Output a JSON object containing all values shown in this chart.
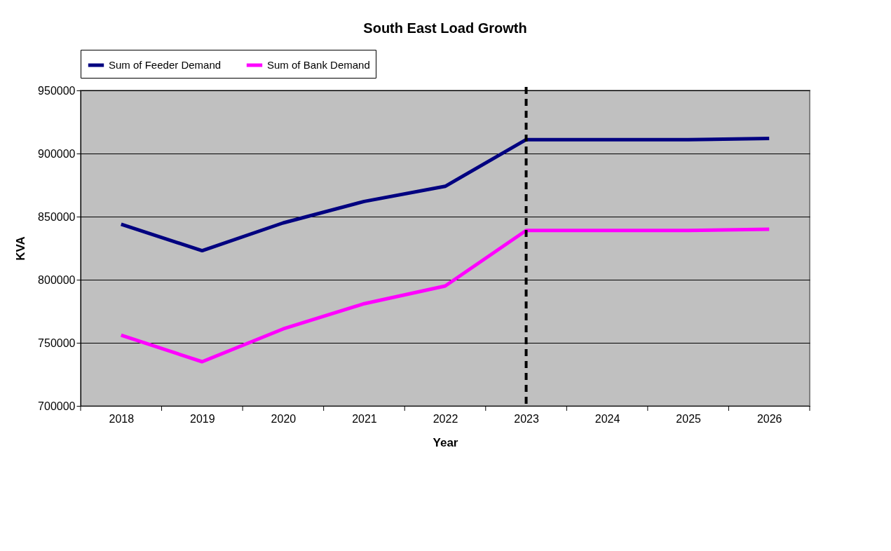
{
  "chart_data": {
    "type": "line",
    "title": "South East Load Growth",
    "xlabel": "Year",
    "ylabel": "KVA",
    "categories": [
      "2018",
      "2019",
      "2020",
      "2021",
      "2022",
      "2023",
      "2024",
      "2025",
      "2026"
    ],
    "series": [
      {
        "name": "Sum of Feeder Demand",
        "color": "#000080",
        "values": [
          844000,
          823000,
          845000,
          862000,
          874000,
          911000,
          911000,
          911000,
          912000
        ]
      },
      {
        "name": "Sum of Bank Demand",
        "color": "#ff00ff",
        "values": [
          756000,
          735000,
          761000,
          781000,
          795000,
          839000,
          839000,
          839000,
          840000
        ]
      }
    ],
    "ylim": [
      700000,
      950000
    ],
    "yticks": [
      700000,
      750000,
      800000,
      850000,
      900000,
      950000
    ],
    "ref_lines": [
      {
        "axis": "x",
        "value": "2023",
        "color": "#000000",
        "line_style": "dashed"
      }
    ],
    "grid": "y",
    "legend": "top",
    "marker": "none",
    "line_style": "solid"
  }
}
